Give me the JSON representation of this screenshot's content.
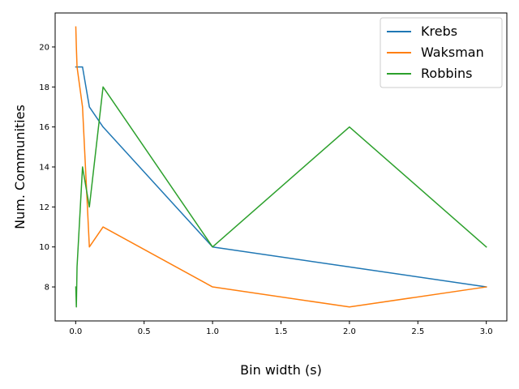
{
  "chart_data": {
    "type": "line",
    "xlabel": "Bin width (s)",
    "ylabel": "Num. Communities",
    "xlim": [
      -0.15,
      3.15
    ],
    "ylim": [
      6.3,
      21.7
    ],
    "xticks": [
      0.0,
      0.5,
      1.0,
      1.5,
      2.0,
      2.5,
      3.0
    ],
    "xtick_labels": [
      "0.0",
      "0.5",
      "1.0",
      "1.5",
      "2.0",
      "2.5",
      "3.0"
    ],
    "yticks": [
      8,
      10,
      12,
      14,
      16,
      18,
      20
    ],
    "ytick_labels": [
      "8",
      "10",
      "12",
      "14",
      "16",
      "18",
      "20"
    ],
    "grid": false,
    "legend_position": "top-right",
    "series": [
      {
        "name": "Krebs",
        "color": "#1f77b4",
        "x": [
          0.001,
          0.005,
          0.01,
          0.05,
          0.1,
          0.2,
          1.0,
          2.0,
          3.0
        ],
        "y": [
          19,
          19,
          19,
          19,
          17,
          16,
          10,
          9,
          8
        ]
      },
      {
        "name": "Waksman",
        "color": "#ff7f0e",
        "x": [
          0.001,
          0.005,
          0.01,
          0.05,
          0.1,
          0.2,
          1.0,
          2.0,
          3.0
        ],
        "y": [
          21,
          20,
          19,
          17,
          10,
          11,
          8,
          7,
          8
        ]
      },
      {
        "name": "Robbins",
        "color": "#2ca02c",
        "x": [
          0.001,
          0.005,
          0.01,
          0.05,
          0.1,
          0.2,
          1.0,
          2.0,
          3.0
        ],
        "y": [
          8,
          7,
          9,
          14,
          12,
          18,
          10,
          16,
          10
        ]
      }
    ]
  }
}
